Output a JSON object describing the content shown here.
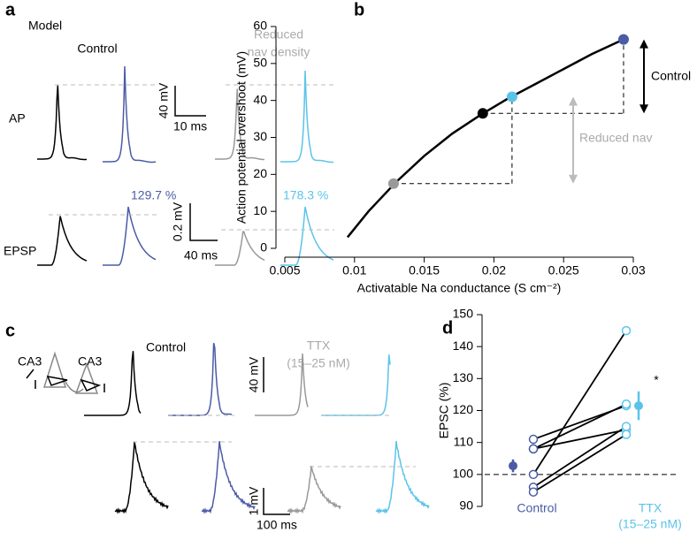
{
  "panel_a": {
    "label": "a",
    "model": "Model",
    "control": "Control",
    "reduced": [
      "Reduced",
      "nav density"
    ],
    "rows": [
      "AP",
      "EPSP"
    ],
    "percents": [
      "129.7 %",
      "178.3 %"
    ],
    "scale_ap": [
      "40 mV",
      "10 ms"
    ],
    "scale_epsp": [
      "0.2 mV",
      "40 ms"
    ]
  },
  "panel_c": {
    "label": "c",
    "cells": [
      "CA3",
      "CA3"
    ],
    "control": "Control",
    "ttx": [
      "TTX",
      "(15–25 nM)"
    ],
    "scale_top": "40 mV",
    "scale_bottom": [
      "1 mV",
      "100 ms"
    ]
  },
  "chart_data": [
    {
      "type": "line",
      "label": "b",
      "xlabel": "Activatable Na conductance (S cm⁻²)",
      "ylabel": "Action potential overshoot (mV)",
      "xlim": [
        0.005,
        0.03
      ],
      "xticks": [
        0.005,
        0.01,
        0.015,
        0.02,
        0.025,
        0.03
      ],
      "ylim": [
        0,
        60
      ],
      "yticks": [
        0,
        10,
        20,
        30,
        40,
        50,
        60
      ],
      "series": [
        {
          "color": "#000000",
          "x": [
            0.0095,
            0.011,
            0.013,
            0.015,
            0.017,
            0.019,
            0.021,
            0.023,
            0.025,
            0.027,
            0.029,
            0.0295
          ],
          "values": [
            3,
            10,
            18,
            25,
            31,
            36,
            40.5,
            44.5,
            48.5,
            52.5,
            56,
            57
          ]
        }
      ],
      "points": {
        "x": [
          0.0128,
          0.0192,
          0.0213,
          0.0293
        ],
        "values": [
          17.5,
          36.5,
          41,
          56.5
        ],
        "colors": [
          "#999999",
          "#000000",
          "#5bc3ea",
          "#4b5ba6"
        ]
      },
      "annotations": [
        "Control",
        "Reduced nav"
      ]
    },
    {
      "type": "paired",
      "label": "d",
      "ylabel": "EPSC (%)",
      "categories": [
        "Control",
        "TTX"
      ],
      "category_detail": "(15–25 nM)",
      "ylim": [
        90,
        150
      ],
      "yticks": [
        90,
        100,
        110,
        120,
        130,
        140,
        150
      ],
      "reference": 100,
      "groups": [
        [
          111,
          108,
          108,
          100,
          96,
          94.5
        ],
        [
          121.5,
          122,
          114,
          145,
          115,
          112.5
        ]
      ],
      "means": [
        102.7,
        121.5
      ],
      "errors": [
        2,
        4.5
      ],
      "colors": [
        "#4b5ba6",
        "#5bc3ea"
      ],
      "significance": "*"
    }
  ]
}
